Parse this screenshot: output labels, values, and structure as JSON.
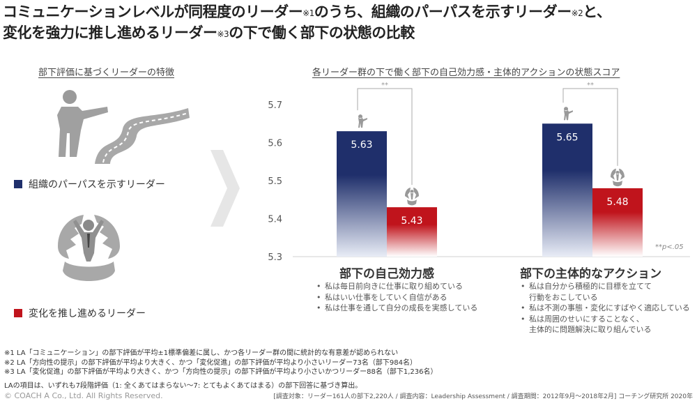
{
  "title": {
    "part1": "コミュニケーションレベルが同程度のリーダー",
    "sup1": "※1",
    "part2": "のうち、組織のパーパスを示すリーダー",
    "sup2": "※2",
    "part3": "と、",
    "part4": "変化を強力に推し進めるリーダー",
    "sup3": "※3",
    "part5": "の下で働く部下の状態の比較"
  },
  "left_heading": "部下評価に基づくリーダーの特徴",
  "chart_heading": "各リーダー群の下で働く部下の自己効力感・主体的アクションの状態スコア",
  "legend": [
    {
      "label": "組織のパーパスを示すリーダー",
      "color": "#1f2f6b"
    },
    {
      "label": "変化を推し進めるリーダー",
      "color": "#c0141c"
    }
  ],
  "chart_data": {
    "type": "bar",
    "categories": [
      "部下の自己効力感",
      "部下の主体的なアクション"
    ],
    "series": [
      {
        "name": "組織のパーパスを示すリーダー",
        "values": [
          5.63,
          5.65
        ],
        "labels": [
          "5.63",
          "5.65"
        ]
      },
      {
        "name": "変化を推し進めるリーダー",
        "values": [
          5.43,
          5.48
        ],
        "labels": [
          "5.43",
          "5.48"
        ]
      }
    ],
    "ylim": [
      5.3,
      5.7
    ],
    "yticks": [
      "5.3",
      "5.4",
      "5.5",
      "5.6",
      "5.7"
    ],
    "significance": [
      "**",
      "**"
    ],
    "significance_note": "**p<.05",
    "colors": {
      "series1": "#1f2f6b",
      "series2": "#c0141c"
    }
  },
  "sections": [
    {
      "title": "部下の自己効力感",
      "bullets": [
        {
          "text": "私は毎日前向きに仕事に取り組めている",
          "cont": false
        },
        {
          "text": "私はいい仕事をしていく自信がある",
          "cont": false
        },
        {
          "text": "私は仕事を通して自分の成長を実感している",
          "cont": false
        }
      ]
    },
    {
      "title": "部下の主体的なアクション",
      "bullets": [
        {
          "text": "私は自分から積極的に目標を立てて",
          "cont": false
        },
        {
          "text": "行動をおこしている",
          "cont": true
        },
        {
          "text": "私は不測の事態・変化にすばやく適応している",
          "cont": false
        },
        {
          "text": "私は周囲のせいにすることなく、",
          "cont": false
        },
        {
          "text": "主体的に問題解決に取り組んでいる",
          "cont": true
        }
      ]
    }
  ],
  "notes": [
    "※1 LA「コミュニケーション」の部下評価が平均±1標準偏差に属し、かつ各リーダー群の間に統計的な有意差が認められない",
    "※2 LA「方向性の提示」の部下評価が平均より大きく、かつ「変化促進」の部下評価が平均より小さいリーダー73名（部下984名）",
    "※3 LA「変化促進」の部下評価が平均より大きく、かつ「方向性の提示」の部下評価が平均より小さいかつリーダー88名（部下1,236名）"
  ],
  "scale_note": "LAの項目は、いずれも7段階評価（1: 全くあてはまらない〜7: とてもよくあてはまる）の部下回答に基づき算出。",
  "copyright": "© COACH A Co., Ltd.  All Rights Reserved.",
  "survey": "[調査対象：リーダー161人の部下2,220人 / 調査内容：Leadership Assessment / 調査期間：2012年9月〜2018年2月] コーチング研究所 2020年",
  "icons": [
    "pointing-person-icon",
    "winding-road-icon",
    "breaking-through-person-icon"
  ]
}
